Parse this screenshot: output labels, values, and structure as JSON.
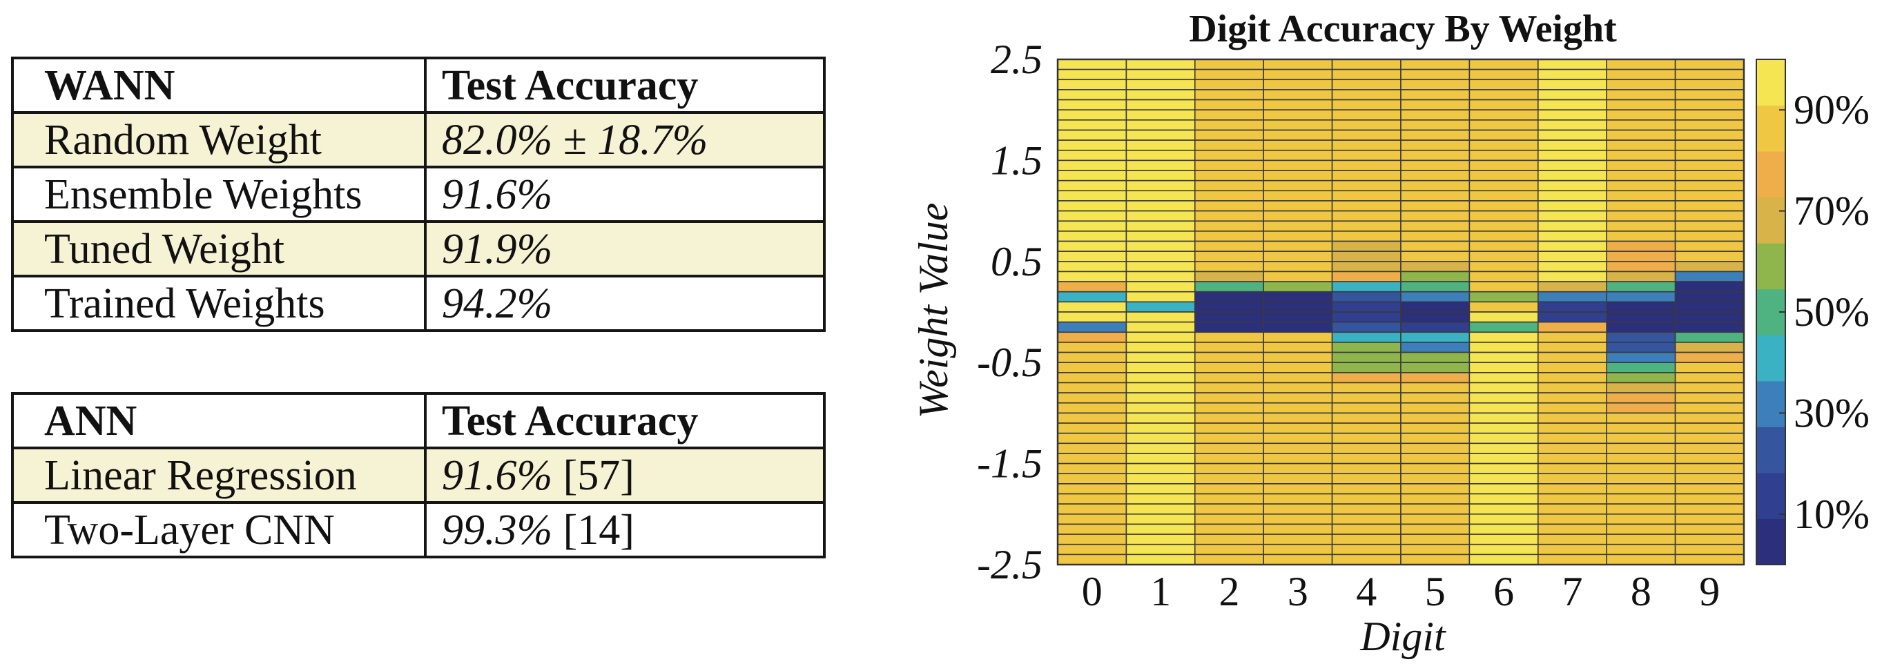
{
  "wann_table": {
    "header": [
      "WANN",
      "Test Accuracy"
    ],
    "rows": [
      {
        "method": "Random Weight",
        "accuracy": "82.0%",
        "uncertainty": " ± 18.7%",
        "ref": ""
      },
      {
        "method": "Ensemble Weights",
        "accuracy": "91.6%",
        "uncertainty": "",
        "ref": ""
      },
      {
        "method": "Tuned Weight",
        "accuracy": "91.9%",
        "uncertainty": "",
        "ref": ""
      },
      {
        "method": "Trained Weights",
        "accuracy": "94.2%",
        "uncertainty": "",
        "ref": ""
      }
    ]
  },
  "ann_table": {
    "header": [
      "ANN",
      "Test Accuracy"
    ],
    "rows": [
      {
        "method": "Linear Regression",
        "accuracy": "91.6%",
        "uncertainty": "",
        "ref": " [57]"
      },
      {
        "method": "Two-Layer CNN",
        "accuracy": "99.3%",
        "uncertainty": "",
        "ref": " [14]"
      }
    ]
  },
  "chart_data": {
    "type": "heatmap",
    "title": "Digit Accuracy By Weight",
    "xlabel": "Digit",
    "ylabel": "Weight Value",
    "x_categories": [
      "0",
      "1",
      "2",
      "3",
      "4",
      "5",
      "6",
      "7",
      "8",
      "9"
    ],
    "y_ticks": [
      2.5,
      1.5,
      0.5,
      -0.5,
      -1.5,
      -2.5
    ],
    "y_tick_labels": [
      "2.5",
      "1.5",
      "0.5",
      "-0.5",
      "-1.5",
      "-2.5"
    ],
    "ylim": [
      -2.5,
      2.5
    ],
    "weight_rows": 50,
    "colorbar": {
      "ticks": [
        90,
        70,
        50,
        30,
        10
      ],
      "tick_labels": [
        "90%",
        "70%",
        "50%",
        "30%",
        "10%"
      ],
      "range": [
        0,
        100
      ],
      "colors": [
        "#2b2f7c",
        "#303f8f",
        "#35559f",
        "#3c7fbb",
        "#3ab2c4",
        "#4fb281",
        "#8fb64c",
        "#d7b349",
        "#eeae49",
        "#f0c743",
        "#f6e552"
      ]
    },
    "series": [
      {
        "digit": "0",
        "value_by_weight": [
          {
            "from": 2.5,
            "to": 0.3,
            "value": 97
          },
          {
            "from": 0.3,
            "to": 0.2,
            "value": 78
          },
          {
            "from": 0.2,
            "to": 0.1,
            "value": 38
          },
          {
            "from": 0.1,
            "to": -0.1,
            "value": 96
          },
          {
            "from": -0.1,
            "to": -0.2,
            "value": 32
          },
          {
            "from": -0.2,
            "to": -0.3,
            "value": 76
          },
          {
            "from": -0.3,
            "to": -2.5,
            "value": 88
          }
        ]
      },
      {
        "digit": "1",
        "value_by_weight": [
          {
            "from": 2.5,
            "to": 0.1,
            "value": 97
          },
          {
            "from": 0.1,
            "to": 0.0,
            "value": 38
          },
          {
            "from": 0.0,
            "to": -2.5,
            "value": 97
          }
        ]
      },
      {
        "digit": "2",
        "value_by_weight": [
          {
            "from": 2.5,
            "to": 0.4,
            "value": 83
          },
          {
            "from": 0.4,
            "to": 0.3,
            "value": 68
          },
          {
            "from": 0.3,
            "to": 0.2,
            "value": 50
          },
          {
            "from": 0.2,
            "to": -0.2,
            "value": 2
          },
          {
            "from": -0.2,
            "to": -2.5,
            "value": 84
          }
        ]
      },
      {
        "digit": "3",
        "value_by_weight": [
          {
            "from": 2.5,
            "to": 0.3,
            "value": 85
          },
          {
            "from": 0.3,
            "to": 0.2,
            "value": 60
          },
          {
            "from": 0.2,
            "to": -0.2,
            "value": 2
          },
          {
            "from": -0.2,
            "to": -2.5,
            "value": 88
          }
        ]
      },
      {
        "digit": "4",
        "value_by_weight": [
          {
            "from": 2.5,
            "to": 0.7,
            "value": 86
          },
          {
            "from": 0.7,
            "to": 0.5,
            "value": 72
          },
          {
            "from": 0.5,
            "to": 0.4,
            "value": 66
          },
          {
            "from": 0.4,
            "to": 0.3,
            "value": 76
          },
          {
            "from": 0.3,
            "to": 0.2,
            "value": 38
          },
          {
            "from": 0.2,
            "to": 0.1,
            "value": 24
          },
          {
            "from": 0.1,
            "to": -0.1,
            "value": 12
          },
          {
            "from": -0.1,
            "to": -0.2,
            "value": 20
          },
          {
            "from": -0.2,
            "to": -0.3,
            "value": 44
          },
          {
            "from": -0.3,
            "to": -0.4,
            "value": 56
          },
          {
            "from": -0.4,
            "to": -0.5,
            "value": 63
          },
          {
            "from": -0.5,
            "to": -0.6,
            "value": 60
          },
          {
            "from": -0.6,
            "to": -0.7,
            "value": 76
          },
          {
            "from": -0.7,
            "to": -2.5,
            "value": 84
          }
        ]
      },
      {
        "digit": "5",
        "value_by_weight": [
          {
            "from": 2.5,
            "to": 0.5,
            "value": 84
          },
          {
            "from": 0.5,
            "to": 0.4,
            "value": 64
          },
          {
            "from": 0.4,
            "to": 0.3,
            "value": 56
          },
          {
            "from": 0.3,
            "to": 0.2,
            "value": 46
          },
          {
            "from": 0.2,
            "to": 0.1,
            "value": 28
          },
          {
            "from": 0.1,
            "to": -0.1,
            "value": 8
          },
          {
            "from": -0.1,
            "to": -0.2,
            "value": 14
          },
          {
            "from": -0.2,
            "to": -0.3,
            "value": 42
          },
          {
            "from": -0.3,
            "to": -0.4,
            "value": 36
          },
          {
            "from": -0.4,
            "to": -0.5,
            "value": 55
          },
          {
            "from": -0.5,
            "to": -0.6,
            "value": 60
          },
          {
            "from": -0.6,
            "to": -0.7,
            "value": 74
          },
          {
            "from": -0.7,
            "to": -2.5,
            "value": 82
          }
        ]
      },
      {
        "digit": "6",
        "value_by_weight": [
          {
            "from": 2.5,
            "to": 0.2,
            "value": 90
          },
          {
            "from": 0.2,
            "to": 0.1,
            "value": 62
          },
          {
            "from": 0.1,
            "to": 0.0,
            "value": 86
          },
          {
            "from": 0.0,
            "to": -0.1,
            "value": 96
          },
          {
            "from": -0.1,
            "to": -0.2,
            "value": 48
          },
          {
            "from": -0.2,
            "to": -2.5,
            "value": 93
          }
        ]
      },
      {
        "digit": "7",
        "value_by_weight": [
          {
            "from": 2.5,
            "to": 0.3,
            "value": 96
          },
          {
            "from": 0.3,
            "to": 0.2,
            "value": 72
          },
          {
            "from": 0.2,
            "to": 0.1,
            "value": 36
          },
          {
            "from": 0.1,
            "to": -0.1,
            "value": 10
          },
          {
            "from": -0.1,
            "to": -0.2,
            "value": 76
          },
          {
            "from": -0.2,
            "to": -2.5,
            "value": 87
          }
        ]
      },
      {
        "digit": "8",
        "value_by_weight": [
          {
            "from": 2.5,
            "to": 0.7,
            "value": 86
          },
          {
            "from": 0.7,
            "to": 0.4,
            "value": 78
          },
          {
            "from": 0.4,
            "to": 0.3,
            "value": 70
          },
          {
            "from": 0.3,
            "to": 0.2,
            "value": 46
          },
          {
            "from": 0.2,
            "to": 0.1,
            "value": 28
          },
          {
            "from": 0.1,
            "to": -0.2,
            "value": 8
          },
          {
            "from": -0.2,
            "to": -0.3,
            "value": 20
          },
          {
            "from": -0.3,
            "to": -0.4,
            "value": 26
          },
          {
            "from": -0.4,
            "to": -0.5,
            "value": 36
          },
          {
            "from": -0.5,
            "to": -0.6,
            "value": 46
          },
          {
            "from": -0.6,
            "to": -0.7,
            "value": 60
          },
          {
            "from": -0.7,
            "to": -0.8,
            "value": 68
          },
          {
            "from": -0.8,
            "to": -1.0,
            "value": 78
          },
          {
            "from": -1.0,
            "to": -2.5,
            "value": 85
          }
        ]
      },
      {
        "digit": "9",
        "value_by_weight": [
          {
            "from": 2.5,
            "to": 0.5,
            "value": 84
          },
          {
            "from": 0.5,
            "to": 0.4,
            "value": 68
          },
          {
            "from": 0.4,
            "to": 0.3,
            "value": 36
          },
          {
            "from": 0.3,
            "to": -0.2,
            "value": 4
          },
          {
            "from": -0.2,
            "to": -0.3,
            "value": 48
          },
          {
            "from": -0.3,
            "to": -0.4,
            "value": 66
          },
          {
            "from": -0.4,
            "to": -0.5,
            "value": 76
          },
          {
            "from": -0.5,
            "to": -2.5,
            "value": 86
          }
        ]
      }
    ]
  }
}
